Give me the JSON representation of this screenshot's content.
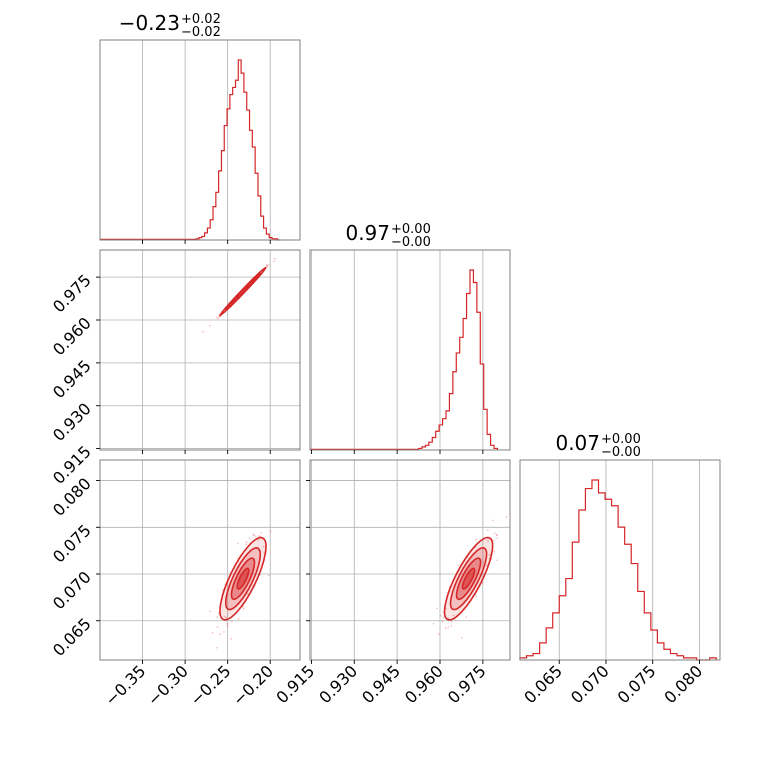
{
  "chart_data": {
    "type": "corner",
    "color": "#d62728",
    "grid": true,
    "titles": [
      {
        "value": "−0.23",
        "plus": "+0.02",
        "minus": "−0.02"
      },
      {
        "value": "0.97",
        "plus": "+0.00",
        "minus": "−0.00"
      },
      {
        "value": "0.07",
        "plus": "+0.00",
        "minus": "−0.00"
      }
    ],
    "params": [
      {
        "range": [
          -0.4,
          -0.165
        ],
        "ticks": [
          -0.35,
          -0.3,
          -0.25,
          -0.2
        ],
        "tick_labels": [
          "−0.35",
          "−0.30",
          "−0.25",
          "−0.20"
        ],
        "mean": -0.232,
        "std": 0.0135
      },
      {
        "range": [
          0.9145,
          0.9845
        ],
        "ticks": [
          0.915,
          0.93,
          0.945,
          0.96,
          0.975
        ],
        "tick_labels": [
          "0.915",
          "0.930",
          "0.945",
          "0.960",
          "0.975"
        ],
        "mean": 0.97,
        "std": 0.0042
      },
      {
        "range": [
          0.0608,
          0.0822
        ],
        "ticks": [
          0.065,
          0.07,
          0.075,
          0.08
        ],
        "tick_labels": [
          "0.065",
          "0.070",
          "0.075",
          "0.080"
        ],
        "mean": 0.0695,
        "std": 0.0022
      }
    ],
    "histograms": [
      {
        "param": 0,
        "bins": [
          -0.287,
          -0.2837,
          -0.2804,
          -0.2771,
          -0.2738,
          -0.2705,
          -0.2672,
          -0.2639,
          -0.2606,
          -0.2573,
          -0.254,
          -0.2507,
          -0.2474,
          -0.2441,
          -0.2408,
          -0.2375,
          -0.2342,
          -0.2309,
          -0.2276,
          -0.2243,
          -0.221,
          -0.2177,
          -0.2144,
          -0.2111,
          -0.2078,
          -0.2045,
          -0.2012,
          -0.1979,
          -0.1946,
          -0.1913,
          -0.188
        ],
        "counts": [
          1,
          2,
          3,
          6,
          10,
          17,
          28,
          40,
          58,
          75,
          96,
          110,
          122,
          128,
          134,
          151,
          140,
          124,
          109,
          92,
          78,
          56,
          37,
          20,
          10,
          5,
          2,
          1,
          1,
          0
        ]
      },
      {
        "param": 1,
        "bins": [
          0.9525,
          0.9537,
          0.9549,
          0.9561,
          0.9573,
          0.9585,
          0.9597,
          0.9609,
          0.9621,
          0.9633,
          0.9645,
          0.9657,
          0.9669,
          0.9681,
          0.9693,
          0.9705,
          0.9717,
          0.9729,
          0.9741,
          0.9753,
          0.9765,
          0.9777,
          0.9789,
          0.9801
        ],
        "counts": [
          1,
          2,
          3,
          5,
          8,
          12,
          16,
          20,
          25,
          36,
          50,
          62,
          72,
          84,
          100,
          115,
          107,
          88,
          55,
          26,
          10,
          3,
          1
        ]
      },
      {
        "param": 2,
        "bins": [
          0.0608,
          0.0615,
          0.0622,
          0.0629,
          0.0636,
          0.0643,
          0.065,
          0.0657,
          0.0664,
          0.0671,
          0.0678,
          0.0685,
          0.0692,
          0.0699,
          0.0706,
          0.0713,
          0.072,
          0.0727,
          0.0734,
          0.0741,
          0.0748,
          0.0755,
          0.0762,
          0.0769,
          0.0776,
          0.0783,
          0.079,
          0.0797,
          0.0804,
          0.0811,
          0.0818
        ],
        "counts": [
          1,
          2,
          3,
          8,
          15,
          22,
          30,
          38,
          55,
          70,
          80,
          84,
          78,
          75,
          72,
          62,
          54,
          45,
          32,
          22,
          14,
          8,
          5,
          3,
          2,
          1,
          1,
          0,
          0,
          1
        ]
      }
    ],
    "pairs": [
      {
        "x": 0,
        "y": 1,
        "rho": 0.995
      },
      {
        "x": 0,
        "y": 2,
        "rho": 0.78
      },
      {
        "x": 1,
        "y": 2,
        "rho": 0.8
      }
    ],
    "contour_levels_sigma": [
      0.5,
      1.0,
      1.5,
      2.0
    ]
  }
}
